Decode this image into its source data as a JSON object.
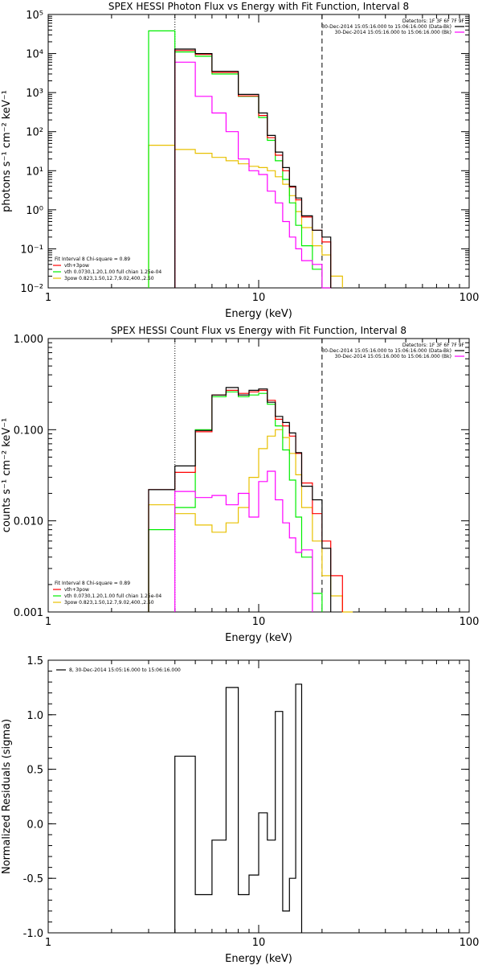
{
  "colors": {
    "data": "#000000",
    "vth_3pow": "#ff0000",
    "vth": "#00ee00",
    "3pow": "#e8c000",
    "bk": "#ff00ff"
  },
  "panels": [
    {
      "title": "SPEX HESSI Photon Flux vs Energy with Fit Function, Interval 8",
      "ylabel": "photons s⁻¹ cm⁻² keV⁻¹",
      "legend_right": [
        "Detectors: 1F 3F 6F 7F 9F",
        "30-Dec-2014 15:05:16.000 to 15:06:16.000 (Data-Bk)",
        "30-Dec-2014 15:05:16.000 to 15:06:16.000 (Bk)"
      ],
      "legend_left": [
        "Fit Interval 8   Chi-square = 0.89",
        "vth+3pow",
        "vth 0.0730,1.20,1.00  full chian 1.25e-04",
        "3pow 0.823,1.50,12.7,9.02,400.,2.50"
      ]
    },
    {
      "title": "SPEX HESSI Count Flux vs Energy with Fit Function, Interval 8",
      "ylabel": "counts s⁻¹ cm⁻² keV⁻¹",
      "legend_right": [
        "Detectors: 1F 3F 6F 7F 9F",
        "30-Dec-2014 15:05:16.000 to 15:06:16.000 (Data-Bk)",
        "30-Dec-2014 15:05:16.000 to 15:06:16.000 (Bk)"
      ],
      "legend_left": [
        "Fit Interval 8   Chi-square = 0.89",
        "vth+3pow",
        "vth 0.0730,1.20,1.00  full chian 1.25e-04",
        "3pow 0.823,1.50,12.7,9.02,400.,2.50"
      ]
    },
    {
      "title": "",
      "ylabel": "Normalized Residuals (sigma)",
      "legend_right": [],
      "legend_left": [
        "8, 30-Dec-2014 15:05:16.000 to 15:06:16.000"
      ]
    }
  ],
  "xlabel": "Energy (keV)",
  "chart_data": [
    {
      "type": "line",
      "step": true,
      "x_scale": "log",
      "y_scale": "log",
      "xlim": [
        1,
        100
      ],
      "ylim": [
        0.01,
        100000
      ],
      "x_ticks": [
        1,
        10,
        100
      ],
      "x_tick_labels": [
        "1",
        "10",
        "100"
      ],
      "y_ticks": [
        0.01,
        0.1,
        1,
        10,
        100,
        1000,
        10000,
        100000
      ],
      "y_tick_labels": [
        "10^-2",
        "10^-1",
        "10^0",
        "10^1",
        "10^2",
        "10^3",
        "10^4",
        "10^5"
      ],
      "vlines": [
        {
          "x": 4,
          "style": "dotted"
        },
        {
          "x": 20,
          "style": "dashed"
        }
      ],
      "bin_edges": [
        3,
        4,
        5,
        6,
        7,
        8,
        9,
        10,
        11,
        12,
        13,
        14,
        15,
        16,
        18,
        20,
        22,
        25
      ],
      "series": [
        {
          "key": "data",
          "values": [
            null,
            13000,
            10000,
            3500,
            3500,
            900,
            900,
            300,
            80,
            30,
            12,
            4,
            2,
            0.7,
            0.3,
            0.2,
            null
          ]
        },
        {
          "key": "vth_3pow",
          "values": [
            null,
            12000,
            9500,
            3300,
            3300,
            820,
            820,
            260,
            70,
            25,
            10,
            3.8,
            1.8,
            0.65,
            0.3,
            0.15,
            null
          ]
        },
        {
          "key": "vth",
          "values": [
            38000,
            11000,
            8500,
            3000,
            3000,
            800,
            800,
            230,
            60,
            18,
            6,
            1.5,
            0.4,
            0.12,
            0.03,
            0.01,
            null
          ]
        },
        {
          "key": "3pow",
          "values": [
            45,
            35,
            28,
            22,
            18,
            15,
            13,
            12,
            10,
            7,
            4.5,
            2.3,
            0.9,
            0.35,
            0.12,
            0.07,
            0.02
          ]
        },
        {
          "key": "bk",
          "values": [
            null,
            6000,
            800,
            300,
            100,
            20,
            10,
            8,
            3,
            1.5,
            0.5,
            0.2,
            0.1,
            0.05,
            0.04,
            0.01,
            null
          ]
        }
      ]
    },
    {
      "type": "line",
      "step": true,
      "x_scale": "log",
      "y_scale": "log",
      "xlim": [
        1,
        100
      ],
      "ylim": [
        0.001,
        1
      ],
      "x_ticks": [
        1,
        10,
        100
      ],
      "x_tick_labels": [
        "1",
        "10",
        "100"
      ],
      "y_ticks": [
        0.001,
        0.01,
        0.1,
        1
      ],
      "y_tick_labels": [
        "0.001",
        "0.010",
        "0.100",
        "1.000"
      ],
      "vlines": [
        {
          "x": 4,
          "style": "dotted"
        },
        {
          "x": 20,
          "style": "dashed"
        }
      ],
      "bin_edges": [
        3,
        4,
        5,
        6,
        7,
        8,
        9,
        10,
        11,
        12,
        13,
        14,
        15,
        16,
        18,
        20,
        22,
        25,
        28
      ],
      "series": [
        {
          "key": "data",
          "values": [
            0.022,
            0.04,
            0.098,
            0.24,
            0.29,
            0.24,
            0.27,
            0.28,
            0.2,
            0.14,
            0.12,
            0.092,
            0.056,
            0.024,
            0.017,
            0.005,
            null,
            null
          ]
        },
        {
          "key": "vth_3pow",
          "values": [
            0.022,
            0.034,
            0.095,
            0.24,
            0.27,
            0.25,
            0.26,
            0.27,
            0.21,
            0.13,
            0.11,
            0.085,
            0.055,
            0.026,
            0.012,
            0.006,
            0.0025,
            null
          ]
        },
        {
          "key": "vth",
          "values": [
            0.008,
            0.014,
            0.1,
            0.23,
            0.26,
            0.23,
            0.24,
            0.25,
            0.19,
            0.11,
            0.06,
            0.028,
            0.011,
            0.004,
            0.0016,
            null,
            null,
            null
          ]
        },
        {
          "key": "3pow",
          "values": [
            0.015,
            0.012,
            0.009,
            0.0075,
            0.0095,
            0.014,
            0.03,
            0.062,
            0.085,
            0.1,
            0.082,
            0.055,
            0.032,
            0.014,
            0.006,
            0.0025,
            0.0015,
            0.001
          ]
        },
        {
          "key": "bk",
          "values": [
            null,
            0.021,
            0.018,
            0.019,
            0.015,
            0.02,
            0.011,
            0.027,
            0.035,
            0.017,
            0.0095,
            0.0065,
            0.0045,
            0.0048,
            null,
            null,
            null,
            null
          ]
        }
      ]
    },
    {
      "type": "line",
      "step": true,
      "x_scale": "log",
      "y_scale": "linear",
      "xlim": [
        1,
        100
      ],
      "ylim": [
        -1,
        1.5
      ],
      "x_ticks": [
        1,
        10,
        100
      ],
      "x_tick_labels": [
        "1",
        "10",
        "100"
      ],
      "y_ticks": [
        -1,
        -0.5,
        0,
        0.5,
        1,
        1.5
      ],
      "y_tick_labels": [
        "-1.0",
        "-0.5",
        "0.0",
        "0.5",
        "1.0",
        "1.5"
      ],
      "vlines": [],
      "bin_edges": [
        4,
        5,
        6,
        7,
        8,
        9,
        10,
        11,
        12,
        13,
        14,
        15,
        16,
        18,
        20
      ],
      "series": [
        {
          "key": "data",
          "values": [
            0.62,
            -0.65,
            -0.15,
            1.25,
            -0.65,
            -0.47,
            0.1,
            -0.15,
            1.03,
            -0.8,
            -0.5,
            1.28,
            null,
            null
          ]
        }
      ]
    }
  ]
}
